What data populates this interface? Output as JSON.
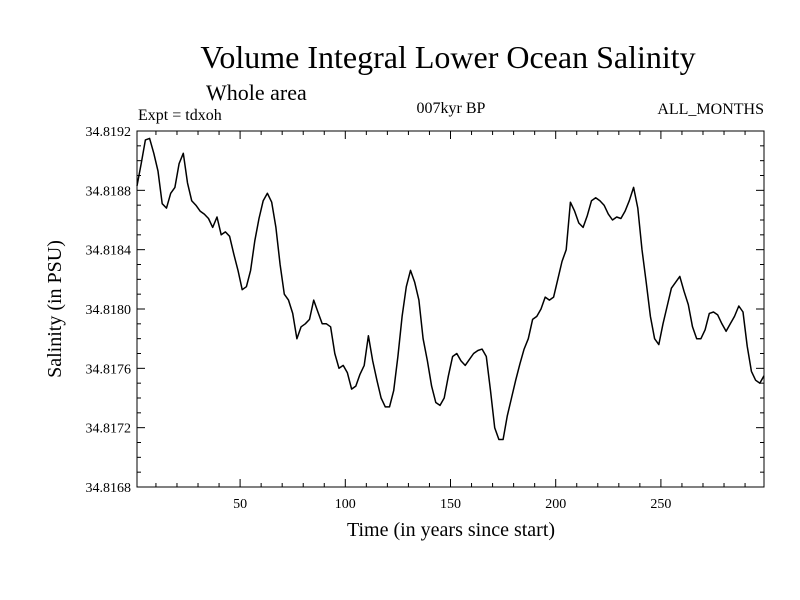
{
  "chart_data": {
    "type": "line",
    "title": "Volume Integral Lower Ocean Salinity",
    "subtitle": "Whole area",
    "expt": "Expt = tdxoh",
    "period": "007kyr BP",
    "months": "ALL_MONTHS",
    "xlabel": "Time (in years since start)",
    "ylabel": "Salinity (in PSU)",
    "xlim": [
      1,
      299
    ],
    "ylim": [
      34.8168,
      34.8192
    ],
    "xticks": [
      50,
      100,
      150,
      200,
      250
    ],
    "xtick_labels": [
      "50",
      "100",
      "150",
      "200",
      "250"
    ],
    "yticks": [
      34.8168,
      34.8172,
      34.8176,
      34.818,
      34.8184,
      34.8188,
      34.8192
    ],
    "ytick_labels": [
      "34.8168",
      "34.8172",
      "34.8176",
      "34.8180",
      "34.8184",
      "34.8188",
      "34.8192"
    ],
    "grid": false,
    "series": [
      {
        "x": [
          1,
          3,
          5,
          7,
          9,
          11,
          13,
          15,
          17,
          19,
          21,
          23,
          25,
          27,
          29,
          31,
          33,
          35,
          37,
          39,
          41,
          43,
          45,
          47,
          49,
          51,
          53,
          55,
          57,
          59,
          61,
          63,
          65,
          67,
          69,
          71,
          73,
          75,
          77,
          79,
          81,
          83,
          85,
          87,
          89,
          91,
          93,
          95,
          97,
          99,
          101,
          103,
          105,
          107,
          109,
          111,
          113,
          115,
          117,
          119,
          121,
          123,
          125,
          127,
          129,
          131,
          133,
          135,
          137,
          139,
          141,
          143,
          145,
          147,
          149,
          151,
          153,
          155,
          157,
          159,
          161,
          163,
          165,
          167,
          169,
          171,
          173,
          175,
          177,
          179,
          181,
          183,
          185,
          187,
          189,
          191,
          193,
          195,
          197,
          199,
          201,
          203,
          205,
          207,
          209,
          211,
          213,
          215,
          217,
          219,
          221,
          223,
          225,
          227,
          229,
          231,
          233,
          235,
          237,
          239,
          241,
          243,
          245,
          247,
          249,
          251,
          253,
          255,
          257,
          259,
          261,
          263,
          265,
          267,
          269,
          271,
          273,
          275,
          277,
          279,
          281,
          283,
          285,
          287,
          289,
          291,
          293,
          295,
          297,
          299
        ],
        "values": [
          34.81883,
          34.81898,
          34.81914,
          34.81915,
          34.81905,
          34.81893,
          34.81871,
          34.81868,
          34.81878,
          34.81882,
          34.81898,
          34.81905,
          34.81885,
          34.81873,
          34.8187,
          34.81866,
          34.81864,
          34.81861,
          34.81855,
          34.81862,
          34.8185,
          34.81852,
          34.81849,
          34.81837,
          34.81826,
          34.81813,
          34.81815,
          34.81826,
          34.81846,
          34.81861,
          34.81873,
          34.81878,
          34.81872,
          34.81855,
          34.8183,
          34.8181,
          34.81806,
          34.81797,
          34.8178,
          34.81788,
          34.8179,
          34.81793,
          34.81806,
          34.81798,
          34.8179,
          34.8179,
          34.81788,
          34.8177,
          34.8176,
          34.81762,
          34.81757,
          34.81746,
          34.81748,
          34.81756,
          34.81762,
          34.81782,
          34.81765,
          34.81752,
          34.8174,
          34.81734,
          34.81734,
          34.81745,
          34.81768,
          34.81795,
          34.81815,
          34.81826,
          34.81818,
          34.81806,
          34.8178,
          34.81765,
          34.81748,
          34.81737,
          34.81735,
          34.8174,
          34.81755,
          34.81768,
          34.8177,
          34.81765,
          34.81762,
          34.81766,
          34.8177,
          34.81772,
          34.81773,
          34.81768,
          34.81745,
          34.8172,
          34.81712,
          34.81712,
          34.81728,
          34.8174,
          34.81752,
          34.81763,
          34.81773,
          34.8178,
          34.81793,
          34.81795,
          34.818,
          34.81808,
          34.81806,
          34.81808,
          34.8182,
          34.81832,
          34.8184,
          34.81872,
          34.81866,
          34.81858,
          34.81855,
          34.81863,
          34.81873,
          34.81875,
          34.81873,
          34.8187,
          34.81864,
          34.8186,
          34.81862,
          34.81861,
          34.81866,
          34.81873,
          34.81882,
          34.81868,
          34.8184,
          34.81818,
          34.81795,
          34.8178,
          34.81776,
          34.8179,
          34.81802,
          34.81814,
          34.81818,
          34.81822,
          34.81812,
          34.81803,
          34.81788,
          34.8178,
          34.8178,
          34.81786,
          34.81797,
          34.81798,
          34.81796,
          34.8179,
          34.81785,
          34.8179,
          34.81795,
          34.81802,
          34.81798,
          34.81775,
          34.81758,
          34.81752,
          34.8175,
          34.81755
        ]
      }
    ]
  }
}
